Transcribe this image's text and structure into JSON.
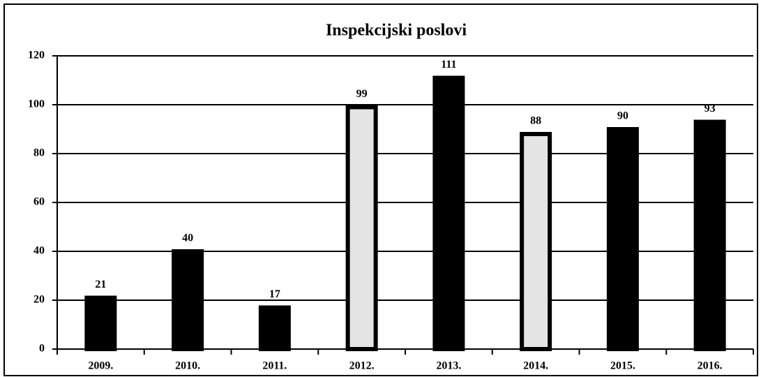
{
  "chart_data": {
    "type": "bar",
    "title": "Inspekcijski poslovi",
    "categories": [
      "2009.",
      "2010.",
      "2011.",
      "2012.",
      "2013.",
      "2014.",
      "2015.",
      "2016."
    ],
    "values": [
      21,
      40,
      17,
      99,
      111,
      88,
      90,
      93
    ],
    "colors": [
      "#000000",
      "#000000",
      "#000000",
      "#e4e4e4",
      "#000000",
      "#e4e4e4",
      "#000000",
      "#000000"
    ],
    "ylim": [
      0,
      120
    ],
    "yticks": [
      0,
      20,
      40,
      60,
      80,
      100,
      120
    ],
    "grid": true
  }
}
